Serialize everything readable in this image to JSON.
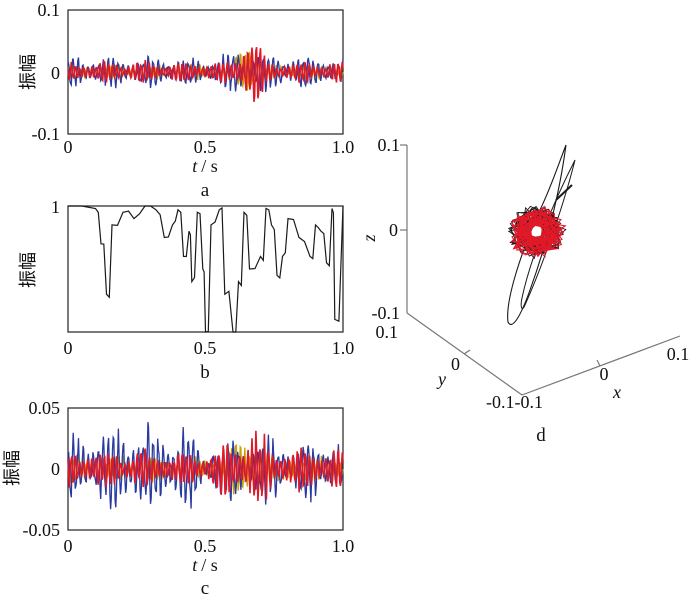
{
  "colors": {
    "blue": "#2a3aa0",
    "red": "#e01828",
    "yellow": "#c8a000",
    "black": "#1a1a1a",
    "axis": "#777777"
  },
  "ylabel": "振幅",
  "xaxis": {
    "label": "t / s",
    "var": "t",
    "unit": "/ s",
    "ticks": [
      "0",
      "0.5",
      "1.0"
    ]
  },
  "panels": {
    "a": {
      "label": "a",
      "yticks": [
        "0.1",
        "0",
        "-0.1"
      ]
    },
    "b": {
      "label": "b",
      "yticks": [
        "1"
      ]
    },
    "c": {
      "label": "c",
      "yticks": [
        "0.05",
        "0",
        "-0.05"
      ]
    },
    "d": {
      "label": "d",
      "ztick_top": "0.1",
      "ztick_mid": "0",
      "ztick_bot": "-0.1",
      "zlabel": "z",
      "ytick_top": "0.1",
      "ytick_mid": "0",
      "ylabel": "y",
      "corner": "-0.1-0.1",
      "xtick_mid": "0",
      "xtick_end": "0.1",
      "xlabel": "x"
    }
  },
  "chart_data": [
    {
      "type": "line",
      "panel": "a",
      "xlim": [
        0,
        1.0
      ],
      "ylim": [
        -0.1,
        0.1
      ],
      "xlabel": "t / s",
      "ylabel": "振幅",
      "series": [
        {
          "color": "blue",
          "amplitude_envelope": [
            [
              0,
              0.03
            ],
            [
              0.3,
              0.03
            ],
            [
              0.5,
              0.025
            ],
            [
              0.66,
              0.05
            ],
            [
              0.7,
              0.04
            ],
            [
              1.0,
              0.025
            ]
          ]
        },
        {
          "color": "red",
          "amplitude_envelope": [
            [
              0,
              0.02
            ],
            [
              0.6,
              0.02
            ],
            [
              0.66,
              0.1
            ],
            [
              0.72,
              0.02
            ],
            [
              1.0,
              0.02
            ]
          ]
        }
      ]
    },
    {
      "type": "line",
      "panel": "b",
      "xlim": [
        0,
        1.0
      ],
      "ylim": [
        0,
        1
      ],
      "xlabel": "t / s",
      "ylabel": "振幅",
      "x": [
        0,
        0.1,
        0.12,
        0.14,
        0.16,
        0.2,
        0.24,
        0.28,
        0.32,
        0.35,
        0.38,
        0.4,
        0.42,
        0.44,
        0.45,
        0.47,
        0.49,
        0.5,
        0.52,
        0.55,
        0.57,
        0.6,
        0.62,
        0.64,
        0.66,
        0.7,
        0.72,
        0.74,
        0.76,
        0.78,
        0.8,
        0.84,
        0.88,
        0.9,
        0.92,
        0.94,
        0.96,
        0.97,
        1.0
      ],
      "y": [
        1,
        0.98,
        0.7,
        0.3,
        0.85,
        0.95,
        0.9,
        1,
        0.97,
        0.75,
        0.85,
        0.97,
        0.6,
        0.8,
        0.4,
        0.95,
        0.5,
        0.0,
        0.85,
        0.97,
        0.3,
        0.0,
        0.4,
        0.95,
        0.5,
        0.6,
        0.98,
        0.85,
        0.45,
        0.6,
        0.9,
        0.75,
        0.6,
        0.85,
        0.8,
        0.55,
        0.98,
        0.1,
        1
      ]
    },
    {
      "type": "line",
      "panel": "c",
      "xlim": [
        0,
        1.0
      ],
      "ylim": [
        -0.05,
        0.05
      ],
      "xlabel": "t / s",
      "ylabel": "振幅",
      "series": [
        {
          "color": "blue",
          "amplitude_envelope": [
            [
              0,
              0.03
            ],
            [
              0.2,
              0.045
            ],
            [
              0.45,
              0.04
            ],
            [
              0.5,
              0.012
            ],
            [
              0.52,
              0.03
            ],
            [
              0.7,
              0.03
            ],
            [
              1.0,
              0.03
            ]
          ]
        },
        {
          "color": "red",
          "amplitude_envelope": [
            [
              0,
              0.02
            ],
            [
              0.5,
              0.015
            ],
            [
              0.68,
              0.04
            ],
            [
              0.75,
              0.02
            ],
            [
              1.0,
              0.02
            ]
          ]
        }
      ]
    },
    {
      "type": "scatter",
      "panel": "d",
      "xlim": [
        -0.1,
        0.1
      ],
      "ylim": [
        -0.1,
        0.1
      ],
      "zlim": [
        -0.1,
        0.1
      ],
      "xlabel": "x",
      "ylabel": "y",
      "zlabel": "z"
    }
  ]
}
